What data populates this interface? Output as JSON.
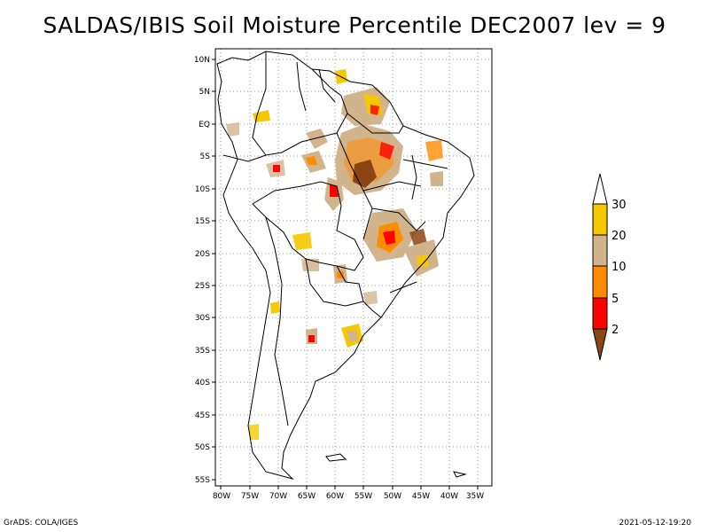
{
  "title": "SALDAS/IBIS Soil Moisture Percentile DEC2007 lev = 9",
  "footer_left": "GrADS: COLA/IGES",
  "footer_right": "2021-05-12-19:20",
  "map": {
    "lat_labels": [
      "10N",
      "5N",
      "EQ",
      "5S",
      "10S",
      "15S",
      "20S",
      "25S",
      "30S",
      "35S",
      "40S",
      "45S",
      "50S",
      "55S"
    ],
    "lon_labels": [
      "80W",
      "75W",
      "70W",
      "65W",
      "60W",
      "55W",
      "50W",
      "45W",
      "40W",
      "35W"
    ]
  },
  "legend": {
    "labels": [
      "30",
      "20",
      "10",
      "5",
      "2"
    ],
    "colors": {
      "above": "#ffffff",
      "b20_30": "#f5c800",
      "b10_20": "#d2b48c",
      "b5_10": "#ff8c00",
      "b2_5": "#ff0000",
      "below": "#8b4513"
    }
  }
}
